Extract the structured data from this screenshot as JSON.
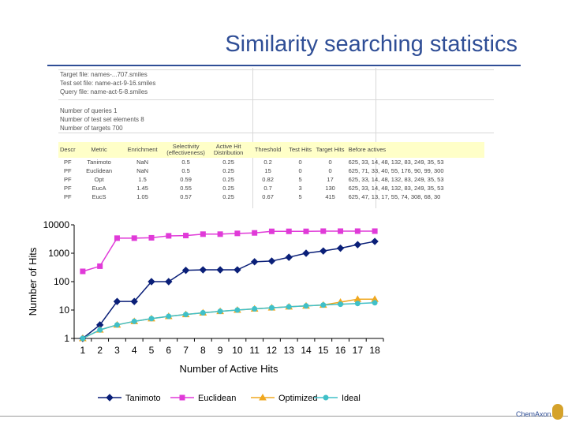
{
  "slide": {
    "title": "Similarity searching statistics",
    "logo_text": "ChemAxon"
  },
  "sheet": {
    "lines_top": [
      "Target file: names-...707.smiles",
      "Test set file: name-act-9-16.smiles",
      "Query file: name-act-5-8.smiles"
    ],
    "lines_mid": [
      "Number of queries 1",
      "Number of test set elements 8",
      "Number of targets 700"
    ],
    "headers": [
      "Descr",
      "Metric",
      "Enrichment",
      "Selectivity (effectiveness)",
      "Active Hit Distribution",
      "Threshold",
      "Test Hits",
      "Target Hits",
      "Before actives"
    ],
    "rows": [
      [
        "PF",
        "Tanimoto",
        "NaN",
        "0.5",
        "0.25",
        "0.2",
        "0",
        "0",
        "625, 33, 14, 48, 132, 83, 249, 35, 53"
      ],
      [
        "PF",
        "Euclidean",
        "NaN",
        "0.5",
        "0.25",
        "15",
        "0",
        "0",
        "625, 71, 33, 40, 55, 176, 90, 99, 300"
      ],
      [
        "PF",
        "Opt",
        "1.5",
        "0.59",
        "0.25",
        "0.82",
        "5",
        "17",
        "625, 33, 14, 48, 132, 83, 249, 35, 53"
      ],
      [
        "PF",
        "EucA",
        "1.45",
        "0.55",
        "0.25",
        "0.7",
        "3",
        "130",
        "625, 33, 14, 48, 132, 83, 249, 35, 53"
      ],
      [
        "PF",
        "EucS",
        "1.05",
        "0.57",
        "0.25",
        "0.67",
        "5",
        "415",
        "625, 47, 13, 17, 55, 74, 308, 68, 30"
      ]
    ]
  },
  "chart_data": {
    "type": "line",
    "title": "",
    "xlabel": "Number of Active Hits",
    "ylabel": "Number of Hits",
    "y_scale": "log",
    "ylim": [
      1,
      10000
    ],
    "y_ticks": [
      "1",
      "10",
      "100",
      "1000",
      "10000"
    ],
    "x": [
      1,
      2,
      3,
      4,
      5,
      6,
      7,
      8,
      9,
      10,
      11,
      12,
      13,
      14,
      15,
      16,
      17,
      18
    ],
    "legend_position": "bottom",
    "series": [
      {
        "name": "Tanimoto",
        "color": "#0a1f78",
        "marker": "diamond",
        "values": [
          1,
          3,
          20,
          20,
          100,
          100,
          250,
          260,
          260,
          260,
          500,
          530,
          720,
          1000,
          1200,
          1500,
          2000,
          2600
        ]
      },
      {
        "name": "Euclidean",
        "color": "#e03ad8",
        "marker": "square",
        "values": [
          230,
          350,
          3400,
          3400,
          3500,
          4100,
          4200,
          4700,
          4700,
          5000,
          5200,
          5900,
          5900,
          5900,
          6000,
          6000,
          6000,
          6000
        ]
      },
      {
        "name": "Optimized",
        "color": "#f0a820",
        "marker": "triangle",
        "values": [
          1,
          2,
          3,
          4,
          5,
          6,
          7,
          8,
          9,
          10,
          11,
          12,
          13,
          14,
          15,
          19,
          24,
          24
        ]
      },
      {
        "name": "Ideal",
        "color": "#40c0c8",
        "marker": "circle",
        "values": [
          1,
          2,
          3,
          4,
          5,
          6,
          7,
          8,
          9,
          10,
          11,
          12,
          13,
          14,
          15,
          16,
          17,
          18
        ]
      }
    ]
  }
}
